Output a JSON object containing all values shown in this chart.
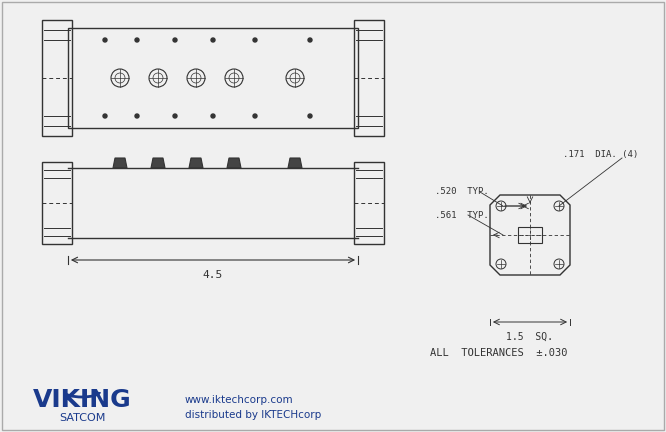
{
  "bg_color": "#f0f0f0",
  "line_color": "#555555",
  "dark_line": "#333333",
  "viking_blue": "#1a3a8c",
  "viking_text": "VIKING",
  "satcom_text": "SATCOM",
  "website_text": "www.iktechcorp.com",
  "distributed_text": "distributed by IKTECHcorp",
  "tolerance_text": "ALL  TOLERANCES  ±.030",
  "dim_45": "4.5",
  "dim_171": ".171  DIA. (4)",
  "dim_520": ".520  TYP.",
  "dim_561": ".561  TYP.",
  "dim_15": "1.5  SQ."
}
